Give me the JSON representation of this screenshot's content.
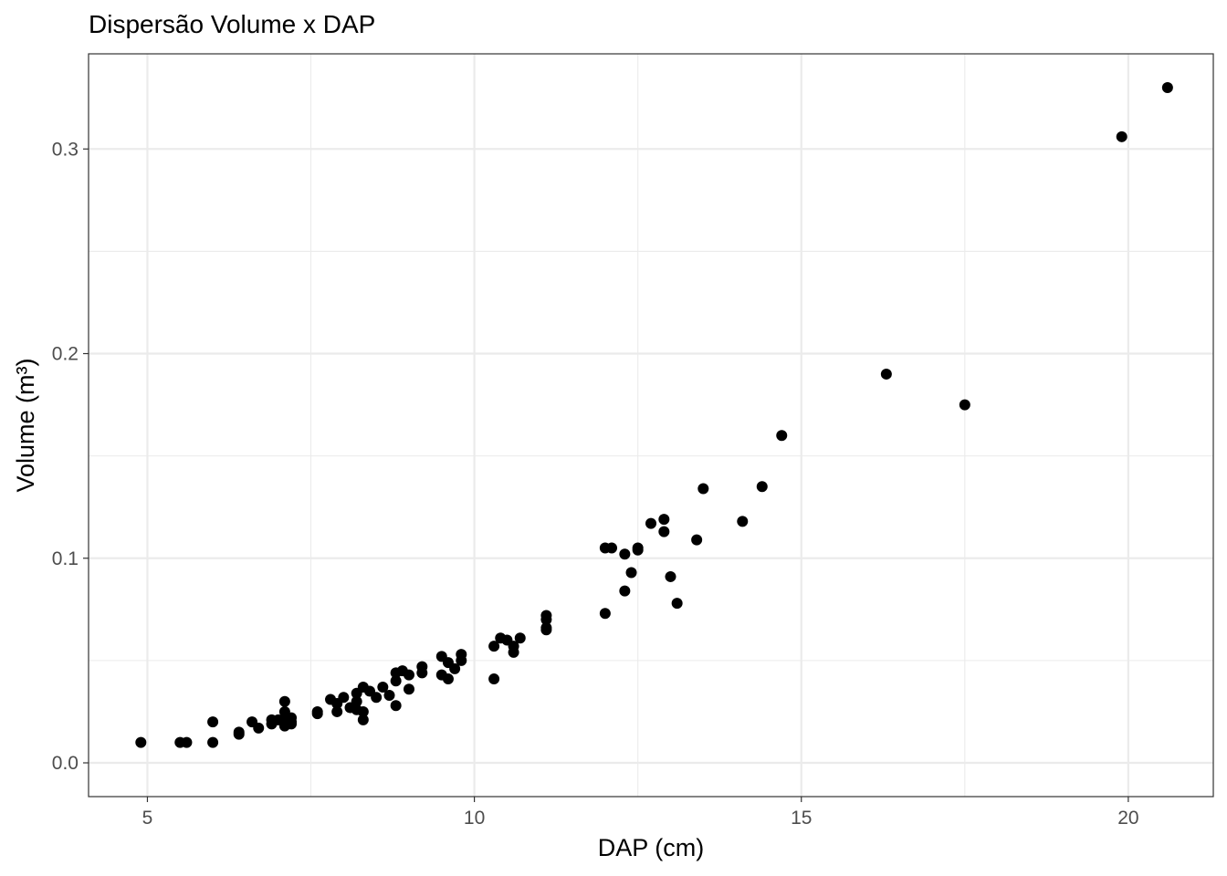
{
  "chart_data": {
    "type": "scatter",
    "title": "Dispersão Volume x DAP",
    "xlabel": "DAP (cm)",
    "ylabel": "Volume (m³)",
    "xlim": [
      4.1,
      21.3
    ],
    "ylim": [
      -0.0165,
      0.3465
    ],
    "x_ticks": [
      5,
      10,
      15,
      20
    ],
    "x_tick_labels": [
      "5",
      "10",
      "15",
      "20"
    ],
    "y_ticks": [
      0.0,
      0.1,
      0.2,
      0.3
    ],
    "y_tick_labels": [
      "0.0",
      "0.1",
      "0.2",
      "0.3"
    ],
    "grid": true,
    "legend": "none",
    "point_color": "#000000",
    "series": [
      {
        "x": [
          4.9,
          5.5,
          5.6,
          6.0,
          6.0,
          6.4,
          6.4,
          6.6,
          6.7,
          6.9,
          6.9,
          7.0,
          7.1,
          7.1,
          7.1,
          7.1,
          7.2,
          7.2,
          7.2,
          7.6,
          7.6,
          7.8,
          7.9,
          7.9,
          8.0,
          8.1,
          8.2,
          8.2,
          8.2,
          8.3,
          8.3,
          8.3,
          8.4,
          8.5,
          8.6,
          8.7,
          8.8,
          8.8,
          8.8,
          8.9,
          9.0,
          9.0,
          9.2,
          9.2,
          9.5,
          9.5,
          9.6,
          9.6,
          9.7,
          9.8,
          9.8,
          10.3,
          10.3,
          10.4,
          10.5,
          10.6,
          10.6,
          10.7,
          11.1,
          11.1,
          11.1,
          11.1,
          12.0,
          12.0,
          12.1,
          12.3,
          12.3,
          12.4,
          12.5,
          12.5,
          12.7,
          12.9,
          12.9,
          13.0,
          13.1,
          13.4,
          13.5,
          14.1,
          14.4,
          14.7,
          16.3,
          17.5,
          19.9,
          20.6
        ],
        "y": [
          0.01,
          0.01,
          0.01,
          0.01,
          0.02,
          0.014,
          0.015,
          0.02,
          0.017,
          0.019,
          0.021,
          0.021,
          0.018,
          0.021,
          0.025,
          0.03,
          0.019,
          0.02,
          0.022,
          0.024,
          0.025,
          0.031,
          0.025,
          0.029,
          0.032,
          0.027,
          0.026,
          0.03,
          0.034,
          0.021,
          0.025,
          0.037,
          0.035,
          0.032,
          0.037,
          0.033,
          0.028,
          0.04,
          0.044,
          0.045,
          0.036,
          0.043,
          0.044,
          0.047,
          0.043,
          0.052,
          0.041,
          0.049,
          0.046,
          0.05,
          0.053,
          0.041,
          0.057,
          0.061,
          0.06,
          0.054,
          0.057,
          0.061,
          0.065,
          0.066,
          0.07,
          0.072,
          0.073,
          0.105,
          0.105,
          0.084,
          0.102,
          0.093,
          0.104,
          0.105,
          0.117,
          0.113,
          0.119,
          0.091,
          0.078,
          0.109,
          0.134,
          0.118,
          0.135,
          0.16,
          0.19,
          0.175,
          0.306,
          0.33
        ]
      }
    ]
  }
}
